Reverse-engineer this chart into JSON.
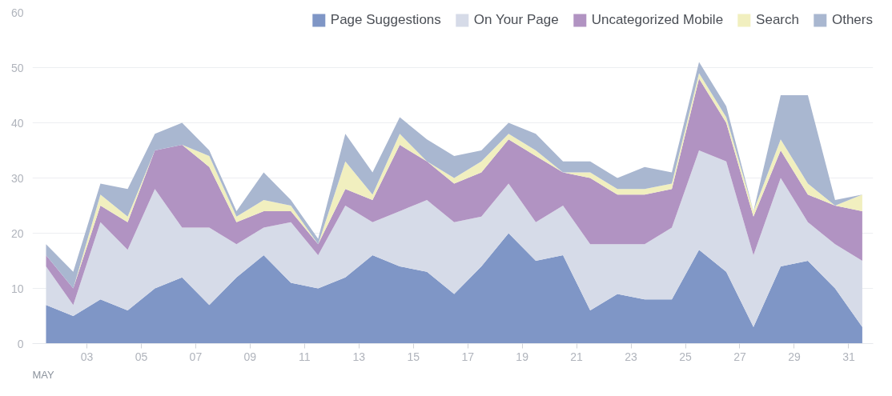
{
  "chart_data": {
    "type": "area",
    "stacked": true,
    "x": [
      1.5,
      2.5,
      3.5,
      4.5,
      5.5,
      6.5,
      7.5,
      8.5,
      9.5,
      10.5,
      11.5,
      12.5,
      13.5,
      14.5,
      15.5,
      16.5,
      17.5,
      18.5,
      19.5,
      20.5,
      21.5,
      22.5,
      23.5,
      24.5,
      25.5,
      26.5,
      27.5,
      28.5,
      29.5,
      30.5,
      31.5
    ],
    "xlim": [
      1,
      31.9
    ],
    "xticks": [
      {
        "value": 3,
        "label": "03"
      },
      {
        "value": 5,
        "label": "05"
      },
      {
        "value": 7,
        "label": "07"
      },
      {
        "value": 9,
        "label": "09"
      },
      {
        "value": 11,
        "label": "11"
      },
      {
        "value": 13,
        "label": "13"
      },
      {
        "value": 15,
        "label": "15"
      },
      {
        "value": 17,
        "label": "17"
      },
      {
        "value": 19,
        "label": "19"
      },
      {
        "value": 21,
        "label": "21"
      },
      {
        "value": 23,
        "label": "23"
      },
      {
        "value": 25,
        "label": "25"
      },
      {
        "value": 27,
        "label": "27"
      },
      {
        "value": 29,
        "label": "29"
      },
      {
        "value": 31,
        "label": "31"
      }
    ],
    "ylim": [
      0,
      60
    ],
    "yticks": [
      0,
      10,
      20,
      30,
      40,
      50,
      60
    ],
    "grid": "y",
    "legend": "top right",
    "annotations": [
      "MAY"
    ],
    "series": [
      {
        "name": "Page Suggestions",
        "color": "#7f96c6",
        "values": [
          7,
          5,
          8,
          6,
          10,
          12,
          7,
          12,
          16,
          11,
          10,
          12,
          16,
          14,
          13,
          9,
          14,
          20,
          15,
          16,
          6,
          9,
          8,
          8,
          17,
          13,
          3,
          14,
          15,
          10,
          3
        ]
      },
      {
        "name": "On Your Page",
        "color": "#d6dbe8",
        "values": [
          7,
          2,
          14,
          11,
          18,
          9,
          14,
          6,
          5,
          11,
          6,
          13,
          6,
          10,
          13,
          13,
          9,
          9,
          7,
          9,
          12,
          9,
          10,
          13,
          18,
          20,
          13,
          16,
          7,
          8,
          12
        ]
      },
      {
        "name": "Uncategorized Mobile",
        "color": "#b193c2",
        "values": [
          2,
          3,
          3,
          5,
          7,
          15,
          11,
          4,
          3,
          2,
          2,
          3,
          4,
          12,
          7,
          7,
          8,
          8,
          12,
          6,
          12,
          9,
          9,
          7,
          13,
          7,
          7,
          5,
          5,
          7,
          9
        ]
      },
      {
        "name": "Search",
        "color": "#f1efbf",
        "values": [
          0,
          0,
          2,
          1,
          0,
          0,
          2,
          1,
          2,
          1,
          0,
          5,
          1,
          2,
          0,
          1,
          2,
          1,
          1,
          0,
          1,
          1,
          1,
          1,
          1,
          1,
          1,
          2,
          2,
          0,
          3
        ]
      },
      {
        "name": "Others",
        "color": "#a9b7d0",
        "values": [
          2,
          3,
          2,
          5,
          3,
          4,
          1,
          1,
          5,
          1,
          1,
          5,
          4,
          3,
          4,
          4,
          2,
          2,
          3,
          2,
          2,
          2,
          4,
          2,
          2,
          2,
          0,
          8,
          16,
          1,
          0
        ]
      }
    ]
  }
}
